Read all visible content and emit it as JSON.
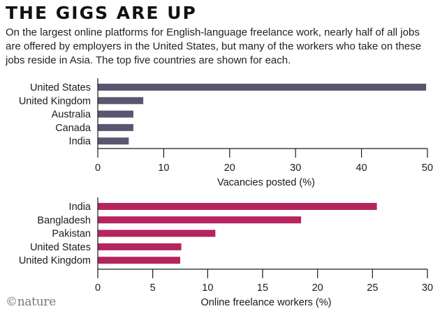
{
  "header": {
    "headline": "THE GIGS ARE UP",
    "standfirst": "On the largest online platforms for English-language freelance work, nearly half of all jobs are offered by employers in the United States, but many of the workers who take on these jobs reside in Asia. The top five countries are shown for each."
  },
  "footer": {
    "logo_text": "©nature"
  },
  "chart_data": [
    {
      "type": "bar",
      "orientation": "horizontal",
      "categories": [
        "United States",
        "United Kingdom",
        "Australia",
        "Canada",
        "India"
      ],
      "values": [
        49.8,
        6.9,
        5.4,
        5.4,
        4.7
      ],
      "xlabel": "Vacancies posted (%)",
      "xlim": [
        0,
        50
      ],
      "ticks": [
        0,
        10,
        20,
        30,
        40,
        50
      ],
      "bar_color": "#5a5670",
      "grid": false
    },
    {
      "type": "bar",
      "orientation": "horizontal",
      "categories": [
        "India",
        "Bangladesh",
        "Pakistan",
        "United States",
        "United Kingdom"
      ],
      "values": [
        25.4,
        18.5,
        10.7,
        7.6,
        7.5
      ],
      "xlabel": "Online freelance workers (%)",
      "xlim": [
        0,
        30
      ],
      "ticks": [
        0,
        5,
        10,
        15,
        20,
        25,
        30
      ],
      "bar_color": "#b5245f",
      "grid": false
    }
  ]
}
